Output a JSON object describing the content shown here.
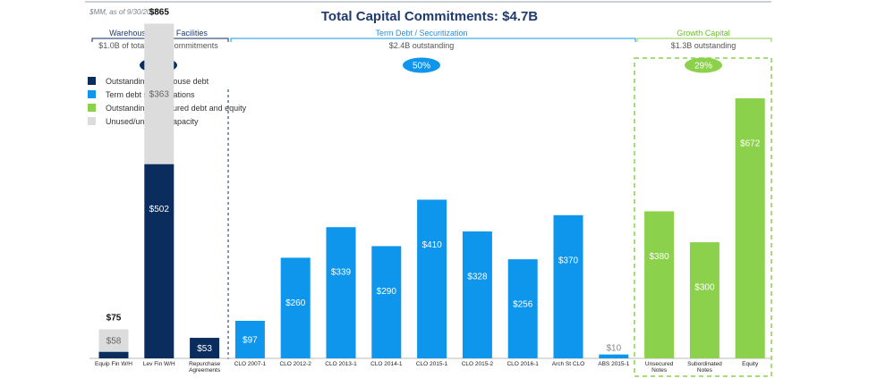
{
  "subtitle": "$MM, as of 9/30/2016",
  "title": "Total Capital Commitments:  $4.7B",
  "colors": {
    "warehouse": "#0b2d5e",
    "term": "#0e95ec",
    "growth": "#8cd14b",
    "unused": "#dcdcdc",
    "title": "#1f3a6e",
    "growth_text": "#6bbf2a",
    "term_text": "#2a8fd8"
  },
  "sections": [
    {
      "name": "Warehouse Credit Facilities",
      "detail": "$1.0B of total credit commitments",
      "pct": "21%"
    },
    {
      "name": "Term Debt / Securitization",
      "detail": "$2.4B outstanding",
      "pct": "50%"
    },
    {
      "name": "Growth Capital",
      "detail": "$1.3B outstanding",
      "pct": "29%"
    }
  ],
  "chart_data": {
    "type": "bar",
    "stacked": true,
    "categories": [
      "Equip Fin W/H",
      "Lev Fin W/H",
      "Repurchase Agreements",
      "CLO 2007-1",
      "CLO 2012-2",
      "CLO 2013-1",
      "CLO 2014-1",
      "CLO 2015-1",
      "CLO 2015-2",
      "CLO 2016-1",
      "Arch St CLO",
      "ABS 2015-1",
      "Unsecured Notes",
      "Subordinated Notes",
      "Equity"
    ],
    "series": [
      {
        "name": "Outstanding warehouse debt",
        "values": [
          17,
          502,
          53,
          0,
          0,
          0,
          0,
          0,
          0,
          0,
          0,
          0,
          0,
          0,
          0
        ],
        "labels": [
          "",
          "$502",
          "$53",
          "",
          "",
          "",
          "",
          "",
          "",
          "",
          "",
          "",
          "",
          "",
          ""
        ]
      },
      {
        "name": "Term debt securitizations",
        "values": [
          0,
          0,
          0,
          97,
          260,
          339,
          290,
          410,
          328,
          256,
          370,
          10,
          0,
          0,
          0
        ],
        "labels": [
          "",
          "",
          "",
          "$97",
          "$260",
          "$339",
          "$290",
          "$410",
          "$328",
          "$256",
          "$370",
          "$10",
          "",
          "",
          ""
        ]
      },
      {
        "name": "Outstanding unsecured debt and equity",
        "values": [
          0,
          0,
          0,
          0,
          0,
          0,
          0,
          0,
          0,
          0,
          0,
          0,
          380,
          300,
          672
        ],
        "labels": [
          "",
          "",
          "",
          "",
          "",
          "",
          "",
          "",
          "",
          "",
          "",
          "",
          "$380",
          "$300",
          "$672"
        ]
      },
      {
        "name": "Unused/undrawn capacity",
        "values": [
          58,
          363,
          0,
          0,
          0,
          0,
          0,
          0,
          0,
          0,
          0,
          0,
          0,
          0,
          0
        ],
        "labels": [
          "$58",
          "$363",
          "",
          "",
          "",
          "",
          "",
          "",
          "",
          "",
          "",
          "",
          "",
          "",
          ""
        ]
      }
    ],
    "totals": [
      "$75",
      "$865",
      "",
      "",
      "",
      "",
      "",
      "",
      "",
      "",
      "",
      "",
      "",
      "",
      ""
    ],
    "ylim": [
      0,
      900
    ],
    "grid": false,
    "legend_position": "top-left"
  }
}
